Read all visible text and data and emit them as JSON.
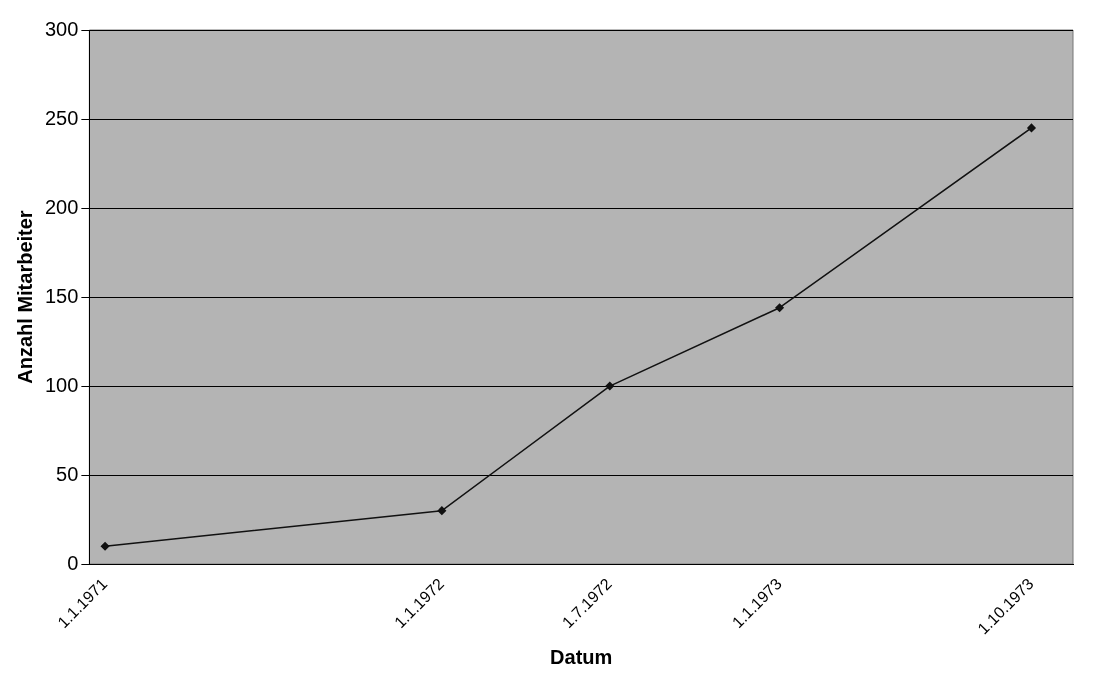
{
  "chart_data": {
    "type": "line",
    "xlabel": "Datum",
    "ylabel": "Anzahl Mitarbeiter",
    "x": [
      "1971-01-01",
      "1972-01-01",
      "1972-07-01",
      "1973-01-01",
      "1973-10-01"
    ],
    "series": [
      {
        "color": "#111111",
        "values": [
          10,
          30,
          100,
          144,
          245
        ]
      }
    ],
    "xlim": [
      "1970-12-15",
      "1973-11-15"
    ],
    "xticks": [
      {
        "value": "1971-01-01",
        "label": "1.1.1971"
      },
      {
        "value": "1972-01-01",
        "label": "1.1.1972"
      },
      {
        "value": "1972-07-01",
        "label": "1.7.1972"
      },
      {
        "value": "1973-01-01",
        "label": "1.1.1973"
      },
      {
        "value": "1973-10-01",
        "label": "1.10.1973"
      }
    ],
    "ylim": [
      0,
      300
    ],
    "yticks": [
      0,
      50,
      100,
      150,
      200,
      250,
      300
    ],
    "grid": "y",
    "legend": false,
    "marker": "diamond",
    "line_style": "solid"
  }
}
